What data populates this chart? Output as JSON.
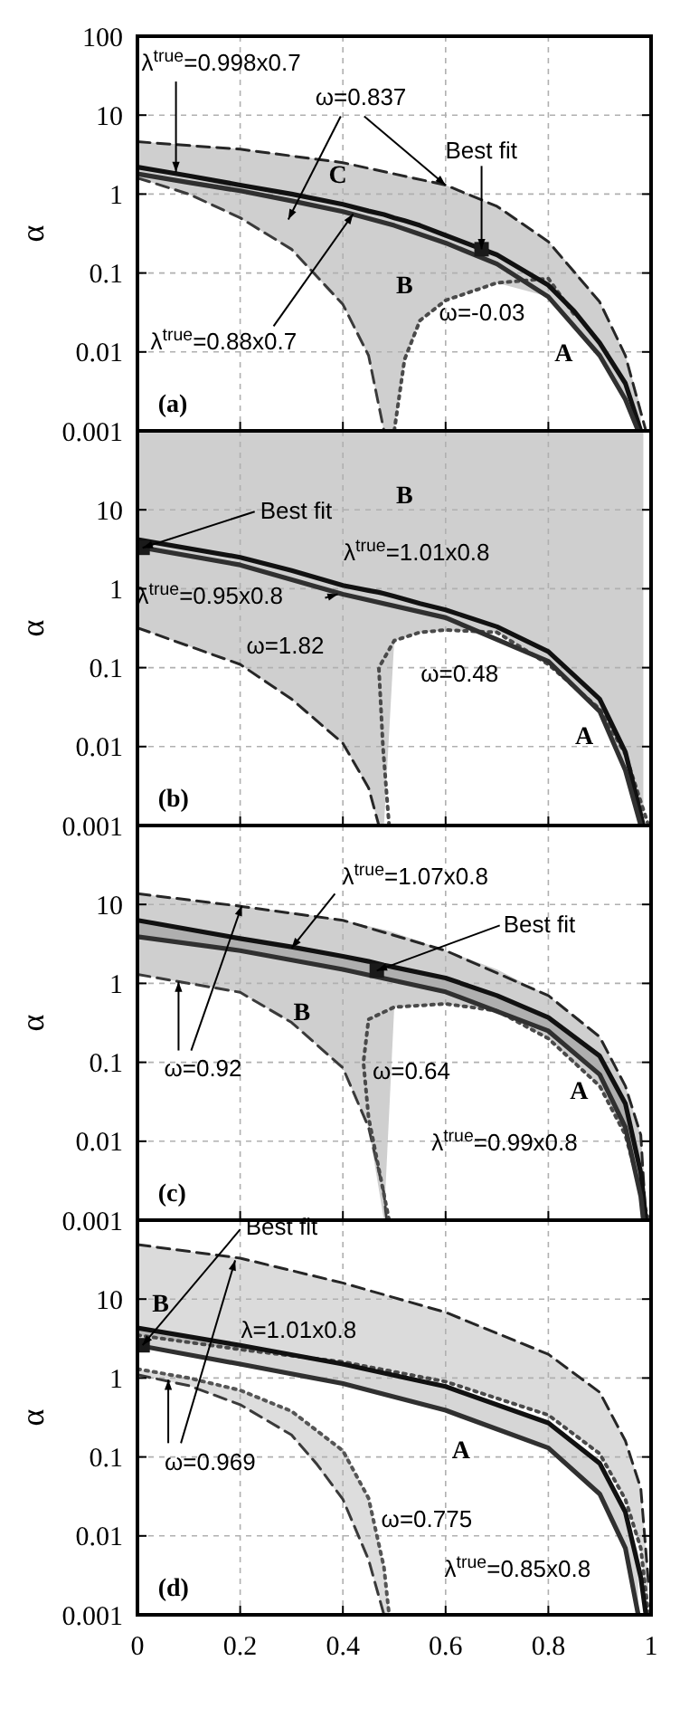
{
  "chart_data": [
    {
      "type": "line",
      "ylabel": "α",
      "xlim": [
        0,
        1
      ],
      "xticks": [
        0,
        0.2,
        0.4,
        0.6,
        0.8,
        1
      ],
      "ylim": [
        0.001,
        100
      ],
      "yticks": [
        0.001,
        0.01,
        0.1,
        1,
        10,
        100
      ],
      "log": true,
      "grid": true,
      "tick_labels": "y",
      "series": [
        {
          "color": "#262626",
          "line_style": "dashed",
          "x": [
            0,
            0.2,
            0.4,
            0.5,
            0.6,
            0.7,
            0.8,
            0.9,
            0.95,
            0.99
          ],
          "values": [
            4.6,
            3.7,
            2.5,
            1.8,
            1.3,
            0.7,
            0.25,
            0.043,
            0.009,
            0.001
          ]
        },
        {
          "color": "#3a3a3a",
          "line_style": "dashed",
          "x": [
            0,
            0.1,
            0.2,
            0.3,
            0.4,
            0.45,
            0.48
          ],
          "values": [
            1.6,
            1.0,
            0.5,
            0.2,
            0.04,
            0.009,
            0.001
          ]
        },
        {
          "color": "#4a4a4a",
          "line_style": "dotted",
          "x": [
            0.5,
            0.52,
            0.55,
            0.6,
            0.7,
            0.8,
            0.85
          ],
          "values": [
            0.001,
            0.008,
            0.025,
            0.045,
            0.075,
            0.085,
            0.03
          ]
        },
        {
          "color": "#111111",
          "line_style": "solid",
          "x": [
            0,
            0.1,
            0.2,
            0.3,
            0.4,
            0.45,
            0.48,
            0.5,
            0.52,
            0.55,
            0.6,
            0.7,
            0.8,
            0.85,
            0.9,
            0.95,
            0.98
          ],
          "values": [
            2.2,
            1.7,
            1.3,
            1.0,
            0.74,
            0.61,
            0.55,
            0.5,
            0.46,
            0.4,
            0.3,
            0.17,
            0.07,
            0.033,
            0.013,
            0.004,
            0.001
          ],
          "upper": [
            4.6,
            4.2,
            3.7,
            3.1,
            2.5,
            2.1,
            1.9,
            1.8,
            1.7,
            1.55,
            1.3,
            0.7,
            0.25,
            0.11,
            0.043,
            0.009,
            0.002
          ],
          "lower": [
            1.6,
            1.0,
            0.5,
            0.2,
            0.04,
            0.009,
            0.001,
            0.001,
            0.008,
            0.025,
            0.045,
            0.075,
            0.05,
            0.022,
            0.009,
            0.0025,
            0.001
          ]
        },
        {
          "color": "#303030",
          "line_style": "solid",
          "x": [
            0,
            0.1,
            0.2,
            0.3,
            0.4,
            0.5,
            0.6,
            0.7,
            0.8,
            0.9,
            0.95,
            0.975
          ],
          "values": [
            1.8,
            1.4,
            1.1,
            0.82,
            0.6,
            0.4,
            0.24,
            0.13,
            0.05,
            0.009,
            0.0025,
            0.001
          ]
        },
        {
          "type": "scatter",
          "marker": "square",
          "color": "#1a1a1a",
          "x": [
            0.67
          ],
          "values": [
            0.2
          ]
        }
      ],
      "annotations": [
        {
          "text": "λ$^{true}$=0.998x0.7",
          "x": 0.075,
          "y": 1.9
        },
        {
          "text": "ω=0.837",
          "x": 0.6,
          "y": 1.3
        },
        {
          "text": "Best fit",
          "x": 0.67,
          "y": 0.2
        },
        {
          "text": "λ$^{true}$=0.88x0.7",
          "x": 0.42,
          "y": 0.56
        },
        {
          "text": "ω=-0.03",
          "x": 0.7,
          "y": 0.075
        },
        "C",
        "B",
        "A",
        "(a)"
      ]
    },
    {
      "type": "line",
      "ylabel": "α",
      "xlim": [
        0,
        1
      ],
      "xticks": [
        0,
        0.2,
        0.4,
        0.6,
        0.8,
        1
      ],
      "ylim": [
        0.001,
        100
      ],
      "yticks": [
        0.001,
        0.01,
        0.1,
        1,
        10
      ],
      "log": true,
      "grid": true,
      "tick_labels": "y",
      "series": [
        {
          "color": "#262626",
          "line_style": "dashed",
          "x": [
            0,
            0.2,
            0.3,
            0.4,
            0.45,
            0.47
          ],
          "values": [
            0.32,
            0.11,
            0.04,
            0.011,
            0.003,
            0.001
          ]
        },
        {
          "color": "#4a4a4a",
          "line_style": "dotted",
          "x": [
            0.49,
            0.478,
            0.47,
            0.5,
            0.55,
            0.6,
            0.7,
            0.8,
            0.9,
            0.95,
            0.995
          ],
          "values": [
            0.001,
            0.01,
            0.1,
            0.22,
            0.28,
            0.3,
            0.28,
            0.11,
            0.03,
            0.008,
            0.001
          ]
        },
        {
          "color": "#111111",
          "line_style": "solid",
          "x": [
            0,
            0.2,
            0.3,
            0.4,
            0.45,
            0.47,
            0.48,
            0.5,
            0.55,
            0.6,
            0.7,
            0.8,
            0.9,
            0.95,
            0.985
          ],
          "values": [
            4.2,
            2.5,
            1.7,
            1.1,
            0.95,
            0.9,
            0.87,
            0.8,
            0.65,
            0.54,
            0.33,
            0.16,
            0.04,
            0.0085,
            0.001
          ],
          "upper": [
            100,
            100,
            100,
            100,
            100,
            100,
            100,
            100,
            100,
            100,
            100,
            100,
            100,
            100,
            100
          ],
          "lower": [
            0.32,
            0.11,
            0.04,
            0.011,
            0.003,
            0.001,
            0.001,
            0.22,
            0.28,
            0.3,
            0.28,
            0.11,
            0.03,
            0.006,
            0.001
          ]
        },
        {
          "color": "#303030",
          "line_style": "solid",
          "x": [
            0,
            0.2,
            0.4,
            0.6,
            0.8,
            0.9,
            0.95,
            0.98
          ],
          "values": [
            3.4,
            2.0,
            0.85,
            0.43,
            0.12,
            0.028,
            0.005,
            0.001
          ]
        },
        {
          "type": "scatter",
          "marker": "square",
          "color": "#1a1a1a",
          "x": [
            0.01
          ],
          "values": [
            3.3
          ]
        }
      ],
      "annotations": [
        {
          "text": "Best fit",
          "x": 0.01,
          "y": 3.3
        },
        {
          "text": "λ$^{true}$=1.01x0.8",
          "x": 0.5,
          "y": 0.8
        },
        {
          "text": "λ$^{true}$=0.95x0.8",
          "x": 0.39,
          "y": 0.85
        },
        {
          "text": "ω=1.82",
          "x": 0.3,
          "y": 0.04
        },
        {
          "text": "ω=0.48",
          "x": 0.65,
          "y": 0.29
        },
        "B",
        "A",
        "(b)"
      ]
    },
    {
      "type": "line",
      "ylabel": "α",
      "xlim": [
        0,
        1
      ],
      "xticks": [
        0,
        0.2,
        0.4,
        0.6,
        0.8,
        1
      ],
      "ylim": [
        0.001,
        100
      ],
      "yticks": [
        0.001,
        0.01,
        0.1,
        1,
        10
      ],
      "log": true,
      "grid": true,
      "tick_labels": "y",
      "series": [
        {
          "color": "#262626",
          "line_style": "dashed",
          "x": [
            0,
            0.2,
            0.4,
            0.6,
            0.8,
            0.9,
            0.95,
            0.98,
            0.99
          ],
          "values": [
            13.7,
            9.5,
            6.3,
            2.6,
            0.7,
            0.21,
            0.05,
            0.012,
            0.001
          ]
        },
        {
          "color": "#3a3a3a",
          "line_style": "dashed",
          "x": [
            0,
            0.2,
            0.3,
            0.4,
            0.45,
            0.48,
            0.485
          ],
          "values": [
            1.3,
            0.77,
            0.32,
            0.085,
            0.015,
            0.0022,
            0.001
          ]
        },
        {
          "color": "#4a4a4a",
          "line_style": "dotted",
          "x": [
            0.49,
            0.45,
            0.44,
            0.45,
            0.5,
            0.6,
            0.7,
            0.8,
            0.9,
            0.95,
            0.995
          ],
          "values": [
            0.001,
            0.02,
            0.1,
            0.35,
            0.5,
            0.55,
            0.45,
            0.2,
            0.05,
            0.012,
            0.001
          ]
        },
        {
          "color": "#111111",
          "line_style": "solid",
          "x": [
            0,
            0.2,
            0.3,
            0.4,
            0.45,
            0.48,
            0.5,
            0.6,
            0.7,
            0.8,
            0.9,
            0.95,
            0.98,
            0.99
          ],
          "values": [
            6.3,
            3.7,
            2.9,
            2.2,
            1.9,
            1.7,
            1.6,
            1.17,
            0.7,
            0.37,
            0.12,
            0.03,
            0.004,
            0.001
          ],
          "upper": [
            13.7,
            9.5,
            8,
            6.3,
            5.3,
            4.8,
            4.4,
            2.6,
            1.5,
            0.7,
            0.21,
            0.05,
            0.012,
            0.002
          ],
          "lower": [
            1.3,
            0.77,
            0.32,
            0.085,
            0.015,
            0.001,
            0.5,
            0.55,
            0.45,
            0.2,
            0.05,
            0.012,
            0.002,
            0.001
          ]
        },
        {
          "color": "#303030",
          "line_style": "solid",
          "x": [
            0,
            0.2,
            0.4,
            0.6,
            0.8,
            0.9,
            0.95,
            0.98,
            0.985
          ],
          "values": [
            3.9,
            2.6,
            1.5,
            0.78,
            0.25,
            0.07,
            0.015,
            0.002,
            0.001
          ],
          "upper": [
            6.3,
            3.7,
            2.2,
            1.17,
            0.37,
            0.12,
            0.03,
            0.004,
            0.0025
          ],
          "lower": [
            3.9,
            2.6,
            1.5,
            0.78,
            0.25,
            0.07,
            0.015,
            0.002,
            0.001
          ]
        },
        {
          "type": "scatter",
          "marker": "square",
          "color": "#1a1a1a",
          "x": [
            0.466
          ],
          "values": [
            1.45
          ]
        }
      ],
      "annotations": [
        {
          "text": "λ$^{true}$=1.07x0.8",
          "x": 0.3,
          "y": 2.8
        },
        {
          "text": "Best fit",
          "x": 0.466,
          "y": 1.45
        },
        {
          "text": "ω=0.92",
          "x": 0.08,
          "y": 1.05
        },
        {
          "text": "ω=0.64",
          "x": 0.44,
          "y": 0.1
        },
        {
          "text": "λ$^{true}$=0.99x0.8",
          "x": 0.9,
          "y": 0.07
        },
        "B",
        "A",
        "(c)"
      ]
    },
    {
      "type": "line",
      "ylabel": "α",
      "xlim": [
        0,
        1
      ],
      "xticks": [
        0,
        0.2,
        0.4,
        0.6,
        0.8,
        1
      ],
      "ylim": [
        0.001,
        100
      ],
      "yticks": [
        0.001,
        0.01,
        0.1,
        1,
        10
      ],
      "log": true,
      "grid": true,
      "series": [
        {
          "color": "#262626",
          "line_style": "dashed",
          "x": [
            0,
            0.2,
            0.4,
            0.6,
            0.8,
            0.9,
            0.95,
            0.98,
            0.995
          ],
          "values": [
            49,
            33,
            16,
            6.8,
            2.0,
            0.66,
            0.16,
            0.04,
            0.0025
          ]
        },
        {
          "color": "#4a4a4a",
          "line_style": "dotted",
          "x": [
            0,
            0.2,
            0.4,
            0.6,
            0.8,
            0.9,
            0.95,
            0.98,
            0.995
          ],
          "values": [
            3.5,
            2.3,
            1.6,
            0.9,
            0.34,
            0.11,
            0.029,
            0.007,
            0.001
          ],
          "upper": [
            49,
            33,
            16,
            6.8,
            2.0,
            0.66,
            0.16,
            0.04,
            0.0025
          ],
          "lower": [
            3.5,
            2.3,
            1.6,
            0.9,
            0.34,
            0.11,
            0.029,
            0.007,
            0.001
          ]
        },
        {
          "color": "#3a3a3a",
          "line_style": "dashed",
          "x": [
            0,
            0.1,
            0.2,
            0.3,
            0.35,
            0.4,
            0.45,
            0.48
          ],
          "values": [
            1.1,
            0.8,
            0.46,
            0.19,
            0.08,
            0.029,
            0.005,
            0.001
          ]
        },
        {
          "color": "#555555",
          "line_style": "dotted",
          "x": [
            0,
            0.1,
            0.2,
            0.3,
            0.4,
            0.45,
            0.48,
            0.49
          ],
          "values": [
            1.3,
            1.0,
            0.7,
            0.38,
            0.12,
            0.03,
            0.004,
            0.001
          ],
          "upper": [
            1.3,
            1.0,
            0.7,
            0.38,
            0.12,
            0.03,
            0.004,
            0.001
          ],
          "lower": [
            1.1,
            0.8,
            0.46,
            0.19,
            0.029,
            0.005,
            0.001,
            0.001
          ]
        },
        {
          "color": "#111111",
          "line_style": "solid",
          "x": [
            0,
            0.2,
            0.4,
            0.6,
            0.8,
            0.9,
            0.95,
            0.98,
            0.99
          ],
          "values": [
            4.3,
            2.6,
            1.5,
            0.78,
            0.27,
            0.083,
            0.02,
            0.003,
            0.001
          ]
        },
        {
          "color": "#303030",
          "line_style": "solid",
          "x": [
            0,
            0.2,
            0.4,
            0.6,
            0.8,
            0.9,
            0.95,
            0.975
          ],
          "values": [
            2.6,
            1.5,
            0.85,
            0.39,
            0.13,
            0.034,
            0.007,
            0.001
          ],
          "upper": [
            4.3,
            2.6,
            1.5,
            0.78,
            0.27,
            0.083,
            0.02,
            0.006
          ],
          "lower": [
            2.6,
            1.5,
            0.85,
            0.39,
            0.13,
            0.034,
            0.007,
            0.001
          ]
        },
        {
          "type": "scatter",
          "marker": "square",
          "color": "#1a1a1a",
          "x": [
            0.01
          ],
          "values": [
            2.6
          ]
        }
      ],
      "annotations": [
        {
          "text": "Best fit",
          "x": 0.01,
          "y": 2.6
        },
        {
          "text": "λ=1.01x0.8",
          "x": 0.3,
          "y": 2
        },
        {
          "text": "ω=0.969",
          "x": 0.06,
          "y": 0.95
        },
        {
          "text": "ω=0.775",
          "x": 0.45,
          "y": 0.02
        },
        {
          "text": "λ$^{true}$=0.85x0.8",
          "x": 0.95,
          "y": 0.007
        },
        "B",
        "A",
        "(d)"
      ]
    }
  ]
}
